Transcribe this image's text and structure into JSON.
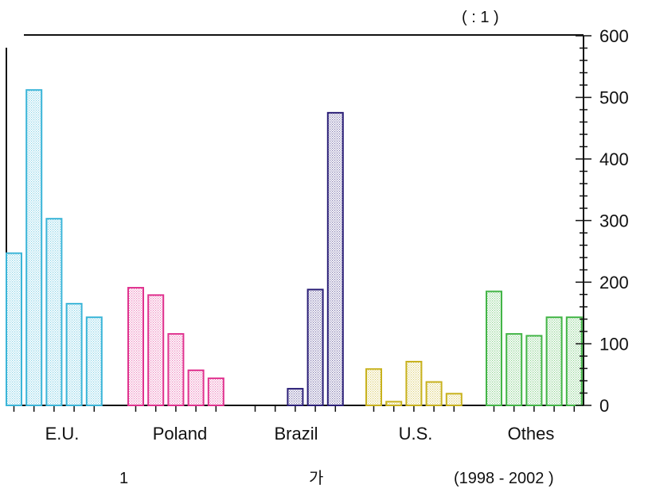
{
  "unit_note": "(      : 1      )",
  "footer": {
    "left": "1",
    "middle": "가",
    "right": "(1998 - 2002   )"
  },
  "colors": {
    "E.U.": "#3bb5d8",
    "Poland": "#e0338f",
    "Brazil": "#2c2078",
    "U.S.": "#c8b21e",
    "Others": "#43b547"
  },
  "chart_data": {
    "type": "bar",
    "categories": [
      "E.U.",
      "Poland",
      "Brazil",
      "U.S.",
      "Othes"
    ],
    "groups": [
      {
        "name": "E.U.",
        "values": [
          247,
          512,
          303,
          165,
          143
        ]
      },
      {
        "name": "Poland",
        "values": [
          191,
          179,
          116,
          57,
          44
        ]
      },
      {
        "name": "Brazil",
        "values": [
          0,
          0,
          27,
          188,
          475
        ]
      },
      {
        "name": "U.S.",
        "values": [
          59,
          6,
          71,
          38,
          19
        ]
      },
      {
        "name": "Others",
        "values": [
          185,
          116,
          113,
          143,
          143
        ]
      }
    ],
    "yticks": [
      "0",
      "100",
      "200",
      "300",
      "400",
      "500",
      "600"
    ],
    "ylim": [
      0,
      600
    ],
    "y_axis_side": "right",
    "grid": false
  }
}
